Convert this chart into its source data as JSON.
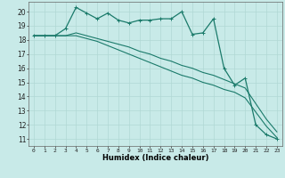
{
  "title": "",
  "xlabel": "Humidex (Indice chaleur)",
  "background_color": "#c8eae8",
  "grid_color": "#b0d8d4",
  "line_color": "#1a7a6a",
  "xlim": [
    -0.5,
    23.5
  ],
  "ylim": [
    10.5,
    20.7
  ],
  "yticks": [
    11,
    12,
    13,
    14,
    15,
    16,
    17,
    18,
    19,
    20
  ],
  "xticks": [
    0,
    1,
    2,
    3,
    4,
    5,
    6,
    7,
    8,
    9,
    10,
    11,
    12,
    13,
    14,
    15,
    16,
    17,
    18,
    19,
    20,
    21,
    22,
    23
  ],
  "series_marked": [
    18.3,
    18.3,
    18.3,
    18.8,
    20.3,
    19.9,
    19.5,
    19.9,
    19.4,
    19.2,
    19.4,
    19.4,
    19.5,
    19.5,
    20.0,
    18.4,
    18.5,
    19.5,
    16.0,
    14.8,
    15.3,
    12.0,
    11.3,
    11.0
  ],
  "series2": [
    18.3,
    18.3,
    18.3,
    18.3,
    18.5,
    18.3,
    18.1,
    17.9,
    17.7,
    17.5,
    17.2,
    17.0,
    16.7,
    16.5,
    16.2,
    16.0,
    15.7,
    15.5,
    15.2,
    14.9,
    14.6,
    13.5,
    12.4,
    11.5
  ],
  "series3": [
    18.3,
    18.3,
    18.3,
    18.3,
    18.3,
    18.1,
    17.9,
    17.6,
    17.3,
    17.0,
    16.7,
    16.4,
    16.1,
    15.8,
    15.5,
    15.3,
    15.0,
    14.8,
    14.5,
    14.3,
    13.9,
    12.9,
    11.9,
    11.1
  ]
}
